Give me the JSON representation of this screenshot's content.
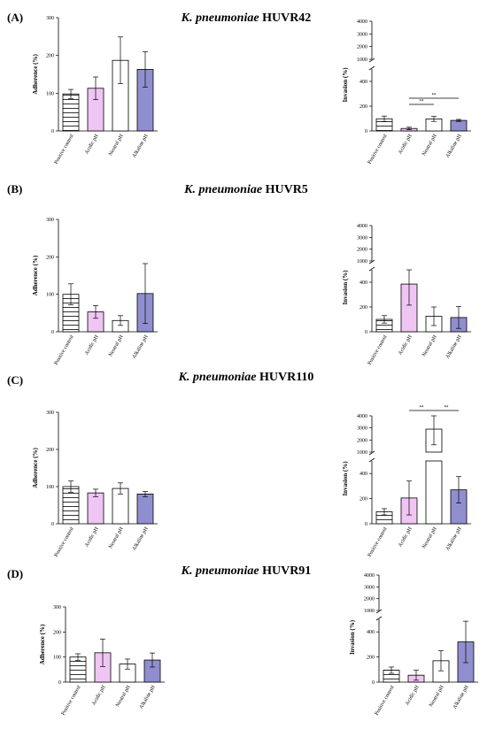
{
  "colors": {
    "positive": "#ffffff",
    "acidic": "#efc6f3",
    "neutral": "#ffffff",
    "alkaline": "#8f8fcf"
  },
  "panels": [
    {
      "label": "(A)",
      "title_italic": "K. pneumoniae",
      "title_strain": "HUVR42"
    },
    {
      "label": "(B)",
      "title_italic": "K. pneumoniae",
      "title_strain": "HUVR5"
    },
    {
      "label": "(C)",
      "title_italic": "K. pneumoniae",
      "title_strain": "HUVR110"
    },
    {
      "label": "(D)",
      "title_italic": "K. pneumoniae",
      "title_strain": "HUVR91"
    }
  ],
  "chart_data": [
    {
      "type": "bar",
      "panel": "(A)",
      "ylabel": "Adherence (%)",
      "categories": [
        "Positive control",
        "Acidic pH",
        "Neutral pH",
        "Alkaline pH"
      ],
      "values": [
        98,
        113,
        187,
        163
      ],
      "errors": [
        12,
        30,
        62,
        47
      ],
      "ylim": [
        0,
        300
      ],
      "yticks": [
        0,
        100,
        200,
        300
      ],
      "significance": []
    },
    {
      "type": "bar",
      "panel": "(A)",
      "ylabel": "Invasion (%)",
      "categories": [
        "Positive control",
        "Acidic pH",
        "Neutral pH",
        "Alkaline pH"
      ],
      "values": [
        98,
        20,
        97,
        85
      ],
      "errors": [
        22,
        10,
        20,
        8
      ],
      "ylim_lower": [
        0,
        500
      ],
      "ylim_upper": [
        1000,
        4000
      ],
      "yticks_lower": [
        0,
        200,
        400
      ],
      "yticks_upper": [
        1000,
        2000,
        3000,
        4000
      ],
      "significance": [
        {
          "from": 1,
          "to": 2,
          "label": "**"
        },
        {
          "from": 1,
          "to": 3,
          "label": "**"
        }
      ]
    },
    {
      "type": "bar",
      "panel": "(B)",
      "ylabel": "Adherence (%)",
      "categories": [
        "Positive control",
        "Acidic pH",
        "Neutral pH",
        "Alkaline pH"
      ],
      "values": [
        100,
        53,
        30,
        102
      ],
      "errors": [
        28,
        17,
        13,
        80
      ],
      "ylim": [
        0,
        300
      ],
      "yticks": [
        0,
        100,
        200,
        300
      ],
      "significance": []
    },
    {
      "type": "bar",
      "panel": "(B)",
      "ylabel": "Invasion (%)",
      "categories": [
        "Positive control",
        "Acidic pH",
        "Neutral pH",
        "Alkaline pH"
      ],
      "values": [
        100,
        385,
        125,
        115
      ],
      "errors": [
        30,
        170,
        75,
        88
      ],
      "ylim_lower": [
        0,
        500
      ],
      "ylim_upper": [
        1000,
        4000
      ],
      "yticks_lower": [
        0,
        200,
        400
      ],
      "yticks_upper": [
        1000,
        2000,
        3000,
        4000
      ],
      "significance": []
    },
    {
      "type": "bar",
      "panel": "(C)",
      "ylabel": "Adherence (%)",
      "categories": [
        "Positive control",
        "Acidic pH",
        "Neutral pH",
        "Alkaline pH"
      ],
      "values": [
        100,
        83,
        95,
        80
      ],
      "errors": [
        15,
        10,
        15,
        7
      ],
      "ylim": [
        0,
        300
      ],
      "yticks": [
        0,
        100,
        200,
        300
      ],
      "significance": []
    },
    {
      "type": "bar",
      "panel": "(C)",
      "ylabel": "Invasion (%)",
      "categories": [
        "Positive control",
        "Acidic pH",
        "Neutral pH",
        "Alkaline pH"
      ],
      "values": [
        95,
        205,
        2900,
        270
      ],
      "errors": [
        25,
        135,
        1300,
        105
      ],
      "ylim_lower": [
        0,
        500
      ],
      "ylim_upper": [
        1000,
        4000
      ],
      "yticks_lower": [
        0,
        200,
        400
      ],
      "yticks_upper": [
        1000,
        2000,
        3000,
        4000
      ],
      "significance": [
        {
          "from": 1,
          "to": 2,
          "label": "**"
        },
        {
          "from": 2,
          "to": 3,
          "label": "**"
        }
      ]
    },
    {
      "type": "bar",
      "panel": "(D)",
      "ylabel": "Adherence (%)",
      "categories": [
        "Positive control",
        "Acidic pH",
        "Neutral pH",
        "Alkaline pH"
      ],
      "values": [
        100,
        117,
        72,
        88
      ],
      "errors": [
        13,
        55,
        20,
        28
      ],
      "ylim": [
        0,
        300
      ],
      "yticks": [
        0,
        100,
        200,
        300
      ],
      "significance": []
    },
    {
      "type": "bar",
      "panel": "(D)",
      "ylabel": "Invasion (%)",
      "categories": [
        "Positive control",
        "Acidic pH",
        "Neutral pH",
        "Alkaline pH"
      ],
      "values": [
        95,
        55,
        170,
        320
      ],
      "errors": [
        25,
        40,
        80,
        165
      ],
      "ylim_lower": [
        0,
        500
      ],
      "ylim_upper": [
        1000,
        4000
      ],
      "yticks_lower": [
        0,
        200,
        400
      ],
      "yticks_upper": [
        1000,
        2000,
        3000,
        4000
      ],
      "significance": []
    }
  ]
}
